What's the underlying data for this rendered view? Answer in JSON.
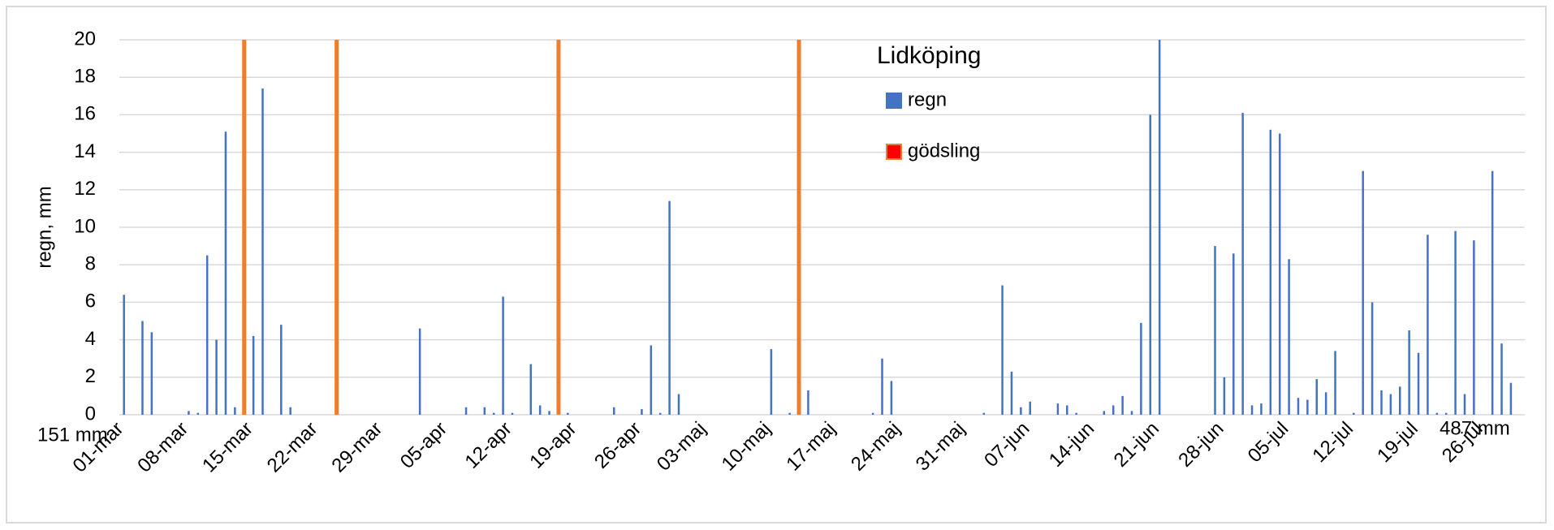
{
  "chart_data": {
    "type": "bar",
    "title": "Lidköping",
    "ylabel": "regn, mm",
    "annotations": [
      "151 mm",
      "487 mm"
    ],
    "ylim": [
      0,
      20
    ],
    "yticks": [
      0,
      2,
      4,
      6,
      8,
      10,
      12,
      14,
      16,
      18,
      20
    ],
    "grid": true,
    "categories": [
      "01-mar",
      null,
      null,
      null,
      null,
      null,
      null,
      "08-mar",
      null,
      null,
      null,
      null,
      null,
      null,
      "15-mar",
      null,
      null,
      null,
      null,
      null,
      null,
      "22-mar",
      null,
      null,
      null,
      null,
      null,
      null,
      "29-mar",
      null,
      null,
      null,
      null,
      null,
      null,
      "05-apr",
      null,
      null,
      null,
      null,
      null,
      null,
      "12-apr",
      null,
      null,
      null,
      null,
      null,
      null,
      "19-apr",
      null,
      null,
      null,
      null,
      null,
      null,
      "26-apr",
      null,
      null,
      null,
      null,
      null,
      null,
      "03-maj",
      null,
      null,
      null,
      null,
      null,
      null,
      "10-maj",
      null,
      null,
      null,
      null,
      null,
      null,
      "17-maj",
      null,
      null,
      null,
      null,
      null,
      null,
      "24-maj",
      null,
      null,
      null,
      null,
      null,
      null,
      "31-maj",
      null,
      null,
      null,
      null,
      null,
      null,
      "07-jun",
      null,
      null,
      null,
      null,
      null,
      null,
      "14-jun",
      null,
      null,
      null,
      null,
      null,
      null,
      "21-jun",
      null,
      null,
      null,
      null,
      null,
      null,
      "28-jun",
      null,
      null,
      null,
      null,
      null,
      null,
      "05-jul",
      null,
      null,
      null,
      null,
      null,
      null,
      "12-jul",
      null,
      null,
      null,
      null,
      null,
      null,
      "19-jul",
      null,
      null,
      null,
      null,
      null,
      null,
      "26-jul",
      null,
      null,
      null,
      null
    ],
    "series": [
      {
        "name": "regn",
        "color": "#4472c4",
        "values": [
          6.4,
          0,
          5.0,
          4.4,
          0,
          0,
          0,
          0.2,
          0.1,
          8.5,
          4.0,
          15.1,
          0.4,
          0,
          4.2,
          17.4,
          0,
          4.8,
          0.4,
          0,
          0,
          0,
          0,
          0,
          0,
          0,
          0,
          0,
          0,
          0,
          0,
          0,
          4.6,
          0,
          0,
          0,
          0,
          0.4,
          0,
          0.4,
          0.1,
          6.3,
          0.1,
          0,
          2.7,
          0.5,
          0.2,
          0,
          0.1,
          0,
          0,
          0,
          0,
          0.4,
          0,
          0,
          0.3,
          3.7,
          0.1,
          11.4,
          1.1,
          0,
          0,
          0,
          0,
          0,
          0,
          0,
          0,
          0,
          3.5,
          0,
          0.1,
          1.0,
          1.3,
          0,
          0,
          0,
          0,
          0,
          0,
          0.1,
          3.0,
          1.8,
          0,
          0,
          0,
          0,
          0,
          0,
          0,
          0,
          0,
          0.1,
          0,
          6.9,
          2.3,
          0.4,
          0.7,
          0,
          0,
          0.6,
          0.5,
          0.1,
          0,
          0,
          0.2,
          0.5,
          1.0,
          0.2,
          4.9,
          16.0,
          20,
          0,
          0,
          0,
          0,
          0,
          9.0,
          2.0,
          8.6,
          16.1,
          0.5,
          0.6,
          15.2,
          15.0,
          8.3,
          0.9,
          0.8,
          1.9,
          1.2,
          3.4,
          0,
          0.1,
          13.0,
          6.0,
          1.3,
          1.1,
          1.5,
          4.5,
          3.3,
          9.6,
          0.1,
          0.1,
          9.8,
          1.1,
          9.3,
          0,
          13.0,
          3.8,
          1.7,
          0
        ]
      },
      {
        "name": "gödsling",
        "color": "#ed7d31",
        "marker_color": "#ff0000",
        "values": [
          null,
          null,
          null,
          null,
          null,
          null,
          null,
          null,
          null,
          null,
          null,
          null,
          null,
          20,
          null,
          null,
          null,
          null,
          null,
          null,
          null,
          null,
          null,
          20,
          null,
          null,
          null,
          null,
          null,
          null,
          null,
          null,
          null,
          null,
          null,
          null,
          null,
          null,
          null,
          null,
          null,
          null,
          null,
          null,
          null,
          null,
          null,
          20,
          null,
          null,
          null,
          null,
          null,
          null,
          null,
          null,
          null,
          null,
          null,
          null,
          null,
          null,
          null,
          null,
          null,
          null,
          null,
          null,
          null,
          null,
          null,
          null,
          null,
          20,
          null,
          null,
          null,
          null,
          null,
          null,
          null,
          null,
          null,
          null,
          null,
          null,
          null,
          null,
          null,
          null,
          null,
          null,
          null,
          null,
          null,
          null,
          null,
          null,
          null,
          null,
          null,
          null,
          null,
          null,
          null,
          null,
          null,
          null,
          null,
          null,
          null,
          null,
          null,
          null,
          null,
          null,
          null,
          null,
          null,
          null,
          null,
          null,
          null,
          null,
          null,
          null,
          null,
          null,
          null,
          null,
          null,
          null,
          null,
          null,
          null,
          null,
          null,
          null,
          null,
          null,
          null,
          null,
          null,
          null,
          null,
          null,
          null,
          null,
          null,
          null,
          null,
          null
        ]
      }
    ]
  }
}
